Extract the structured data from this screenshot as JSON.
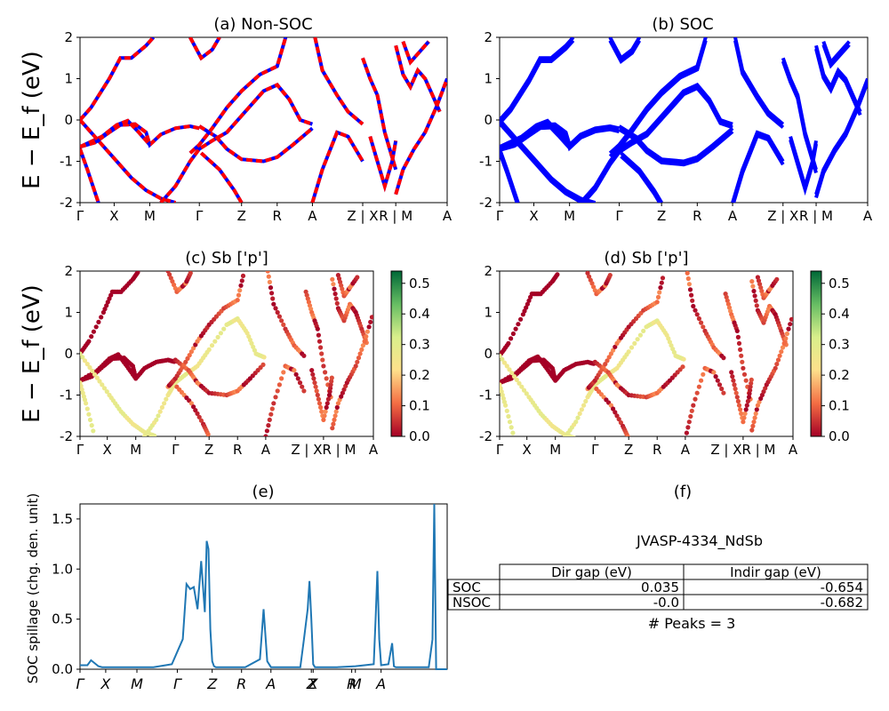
{
  "colors": {
    "band_blue": "#0000ff",
    "band_red": "#ff0000",
    "spillage_line": "#1f77b4",
    "colormap": [
      "#a50026",
      "#f46d43",
      "#fee08b",
      "#d9ef8b",
      "#66bd63",
      "#006837"
    ]
  },
  "kpath_labels": [
    "Γ",
    "X",
    "M",
    "Γ",
    "Z",
    "R",
    "A",
    "Z | X",
    "R | M",
    "A"
  ],
  "projected_kpath_labels": [
    "Γ",
    "X",
    "M",
    "Γ",
    "Z",
    "R",
    "A",
    "Z | XR | M",
    "A"
  ],
  "spillage_tick_labels": [
    "Γ",
    "X",
    "M",
    "Γ",
    "Z",
    "R",
    "A",
    "Z",
    "X",
    "R",
    "M",
    "A"
  ],
  "chart_data": [
    {
      "type": "line",
      "title": "(a) Non-SOC",
      "ylabel": "E − E_f (eV)",
      "ylim": [
        -2,
        2
      ],
      "yticks": [
        -2,
        -1,
        0,
        1,
        2
      ],
      "categories": [
        "Γ",
        "X",
        "M",
        "Γ",
        "Z",
        "R",
        "A",
        "Z | X",
        "R | M",
        "A"
      ],
      "series": [
        {
          "values_sketch": [
            {
              "x": [
                0,
                0.5,
                1,
                1.5,
                2,
                2.5,
                3.0
              ],
              "y": [
                0,
                0.4,
                1.0,
                1.6,
                2.0,
                2.0,
                2.0
              ]
            },
            {
              "x": [
                0,
                0.4,
                0.8,
                1.0,
                1.3,
                1.6,
                2.0,
                2.3,
                2.6,
                3.0
              ],
              "y": [
                -0.65,
                -0.55,
                -0.35,
                -0.2,
                -0.12,
                -0.1,
                -0.35,
                -0.6,
                -0.35,
                -0.15
              ]
            },
            {
              "x": [
                0,
                0.1,
                0.2,
                0.4
              ],
              "y": [
                -0.7,
                -1.1,
                -1.5,
                -2.0
              ]
            },
            {
              "x": [
                3.0,
                3.4,
                3.8,
                4.2,
                4.6,
                5.0,
                5.5
              ],
              "y": [
                -0.15,
                -0.3,
                -0.45,
                -0.6,
                -0.85,
                -1.05,
                -1.05
              ]
            }
          ]
        }
      ]
    },
    {
      "type": "line",
      "title": "(b) SOC",
      "ylabel": "",
      "ylim": [
        -2,
        2
      ],
      "yticks": [
        -2,
        -1,
        0,
        1,
        2
      ],
      "categories": [
        "Γ",
        "X",
        "M",
        "Γ",
        "Z",
        "R",
        "A",
        "Z | X",
        "R | M",
        "A"
      ],
      "series": []
    },
    {
      "type": "scatter",
      "title": "(c)  Sb ['p']",
      "ylabel": "E − E_f (eV)",
      "ylim": [
        -2,
        2
      ],
      "yticks": [
        -2,
        -1,
        0,
        1,
        2
      ],
      "colorbar_ticks": [
        0.0,
        0.1,
        0.2,
        0.3,
        0.4,
        0.5
      ],
      "colorbar_range": [
        0,
        0.54
      ],
      "categories": [
        "Γ",
        "X",
        "M",
        "Γ",
        "Z",
        "R",
        "A",
        "Z | XR | M",
        "A"
      ]
    },
    {
      "type": "scatter",
      "title": "(d) Sb ['p']",
      "ylabel": "",
      "ylim": [
        -2,
        2
      ],
      "yticks": [
        -2,
        -1,
        0,
        1,
        2
      ],
      "colorbar_ticks": [
        0.0,
        0.1,
        0.2,
        0.3,
        0.4,
        0.5
      ],
      "colorbar_range": [
        0,
        0.54
      ],
      "categories": [
        "Γ",
        "X",
        "M",
        "Γ",
        "Z",
        "R",
        "A",
        "Z | XR | M",
        "A"
      ]
    },
    {
      "type": "line",
      "title": "(e)",
      "ylabel": "SOC spillage (chg. den. unit)",
      "ylim": [
        0,
        1.65
      ],
      "yticks": [
        0.0,
        0.5,
        1.0,
        1.5
      ],
      "x": [
        0,
        0.02,
        0.03,
        0.05,
        0.06,
        0.1,
        0.2,
        0.25,
        0.28,
        0.29,
        0.3,
        0.31,
        0.32,
        0.33,
        0.34,
        0.345,
        0.35,
        0.355,
        0.36,
        0.365,
        0.37,
        0.38,
        0.4,
        0.45,
        0.49,
        0.5,
        0.51,
        0.52,
        0.6,
        0.61,
        0.62,
        0.625,
        0.63,
        0.635,
        0.64,
        0.66,
        0.7,
        0.75,
        0.8,
        0.805,
        0.81,
        0.815,
        0.82,
        0.84,
        0.85,
        0.855,
        0.86,
        0.9,
        0.95,
        0.96,
        0.965,
        0.97,
        0.975,
        1.0
      ],
      "y": [
        0.04,
        0.04,
        0.09,
        0.03,
        0.02,
        0.02,
        0.02,
        0.05,
        0.3,
        0.85,
        0.8,
        0.82,
        0.6,
        1.08,
        0.57,
        1.28,
        1.2,
        0.4,
        0.08,
        0.03,
        0.02,
        0.02,
        0.02,
        0.02,
        0.1,
        0.6,
        0.08,
        0.02,
        0.02,
        0.3,
        0.6,
        0.88,
        0.5,
        0.05,
        0.02,
        0.02,
        0.02,
        0.03,
        0.05,
        0.5,
        0.98,
        0.3,
        0.04,
        0.05,
        0.26,
        0.03,
        0.02,
        0.02,
        0.02,
        0.3,
        1.65,
        0.0,
        0.0,
        0.0
      ]
    }
  ],
  "table": {
    "title": "(f)",
    "name": "JVASP-4334_NdSb",
    "headers": [
      "",
      "Dir gap (eV)",
      "Indir gap (eV)"
    ],
    "rows": [
      [
        "SOC",
        "0.035",
        "-0.654"
      ],
      [
        "NSOC",
        "-0.0",
        "-0.682"
      ]
    ],
    "peaks": "# Peaks = 3"
  }
}
